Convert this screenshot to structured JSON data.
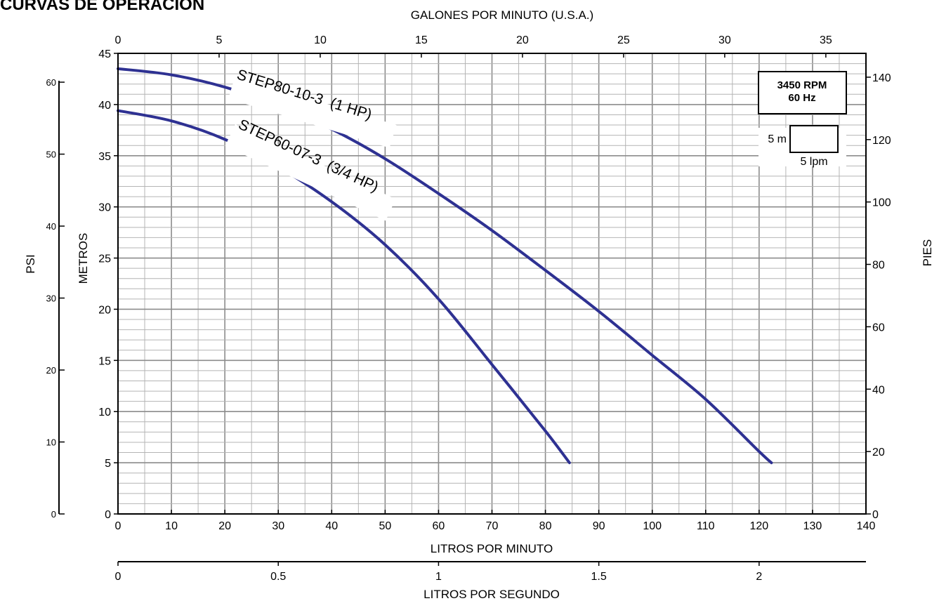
{
  "chart_data": {
    "type": "line",
    "title": "CURVAS DE OPERACIÓN",
    "x_bottom": {
      "label": "LITROS POR MINUTO",
      "range": [
        0,
        140
      ],
      "ticks": [
        0,
        10,
        20,
        30,
        40,
        50,
        60,
        70,
        80,
        90,
        100,
        110,
        120,
        130,
        140
      ]
    },
    "x_top": {
      "label": "GALONES POR MINUTO (U.S.A.)",
      "range": [
        0,
        37
      ],
      "ticks": [
        0,
        5,
        10,
        15,
        20,
        25,
        30,
        35
      ]
    },
    "x_bottom2": {
      "label": "LITROS POR SEGUNDO",
      "ticks": [
        0,
        0.5,
        1,
        1.5,
        2
      ]
    },
    "y_left": {
      "label": "METROS",
      "range": [
        0,
        45
      ],
      "ticks": [
        0,
        5,
        10,
        15,
        20,
        25,
        30,
        35,
        40,
        45
      ]
    },
    "y_left2": {
      "label": "PSI",
      "ticks": [
        0,
        10,
        20,
        30,
        40,
        50,
        60
      ]
    },
    "y_right": {
      "label": "PIES",
      "ticks": [
        0,
        20,
        40,
        60,
        80,
        100,
        120,
        140
      ]
    },
    "grid": true,
    "info_box": {
      "line1": "3450 RPM",
      "line2": "60 Hz"
    },
    "scale_box": {
      "y_label": "5 m",
      "x_label": "5 lpm"
    },
    "series": [
      {
        "name": "STEP80-10-3  (1 HP)",
        "color": "#2e3192",
        "x": [
          0,
          10,
          20,
          30,
          40,
          50,
          60,
          70,
          80,
          90,
          100,
          110,
          120,
          122.3
        ],
        "y": [
          43.5,
          42.9,
          41.7,
          39.9,
          37.6,
          34.7,
          31.3,
          27.7,
          23.8,
          19.8,
          15.5,
          11.2,
          6.1,
          5.0
        ]
      },
      {
        "name": "STEP60-07-3  (3/4 HP)",
        "color": "#2e3192",
        "x": [
          0,
          10,
          20,
          30,
          40,
          50,
          60,
          70,
          80,
          84.5
        ],
        "y": [
          39.4,
          38.4,
          36.6,
          33.9,
          30.5,
          26.3,
          21.0,
          14.6,
          8.1,
          5.0
        ]
      }
    ]
  }
}
